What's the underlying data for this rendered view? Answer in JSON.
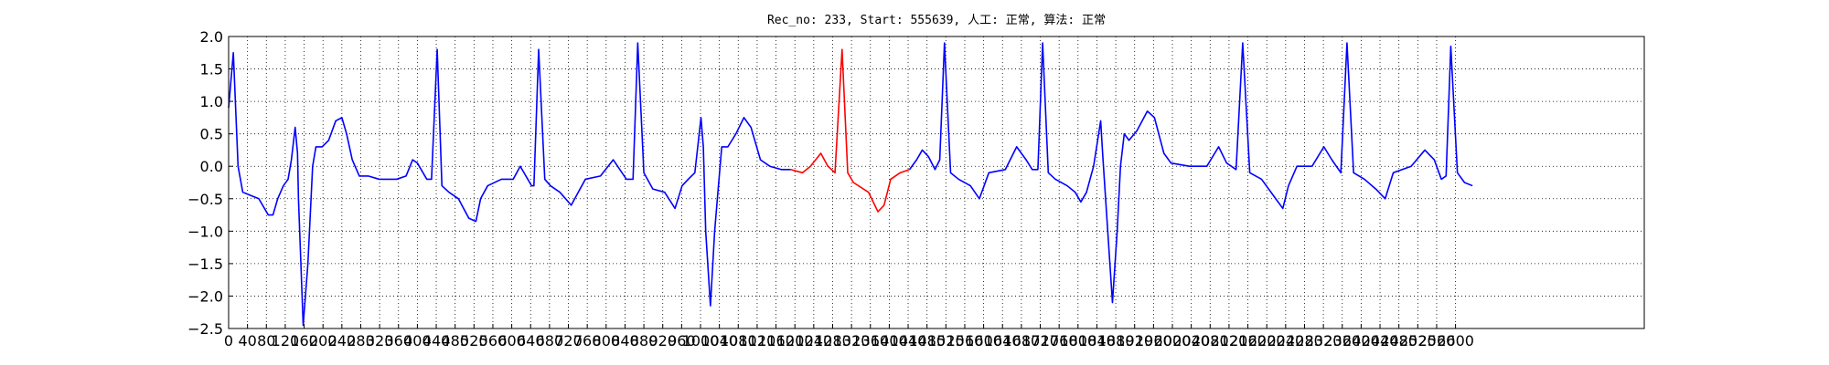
{
  "chart_data": {
    "type": "line",
    "title": "Rec_no: 233, Start: 555639, 人工: 正常, 算法: 正常",
    "x": [
      0,
      10,
      20,
      30,
      47,
      64,
      84,
      94,
      104,
      116,
      126,
      133,
      141,
      146,
      148,
      158,
      168,
      178,
      185,
      198,
      212,
      227,
      240,
      250,
      262,
      277,
      296,
      319,
      356,
      376,
      390,
      400,
      420,
      430,
      442,
      452,
      467,
      487,
      509,
      524,
      534,
      549,
      578,
      603,
      618,
      642,
      647,
      657,
      670,
      682,
      702,
      726,
      741,
      756,
      788,
      815,
      843,
      857,
      867,
      880,
      899,
      924,
      946,
      961,
      974,
      988,
      1001,
      1006,
      1011,
      1021,
      1030,
      1038,
      1045,
      1058,
      1075,
      1092,
      1107,
      1127,
      1147,
      1171,
      1191,
      1216,
      1233,
      1255,
      1270,
      1285,
      1300,
      1312,
      1324,
      1356,
      1376,
      1389,
      1403,
      1423,
      1443,
      1458,
      1470,
      1483,
      1497,
      1507,
      1517,
      1530,
      1547,
      1572,
      1591,
      1611,
      1646,
      1670,
      1690,
      1703,
      1715,
      1725,
      1737,
      1752,
      1777,
      1794,
      1806,
      1818,
      1833,
      1848,
      1853,
      1863,
      1873,
      1883,
      1890,
      1898,
      1908,
      1925,
      1947,
      1962,
      1982,
      1997,
      2036,
      2073,
      2098,
      2115,
      2135,
      2149,
      2164,
      2189,
      2214,
      2234,
      2246,
      2264,
      2296,
      2321,
      2338,
      2357,
      2370,
      2384,
      2407,
      2431,
      2451,
      2468,
      2506,
      2535,
      2555,
      2570,
      2580,
      2590,
      2604,
      2619,
      2636
    ],
    "series": [
      {
        "color": "#0000ff",
        "values": [
          0.9,
          1.75,
          0.0,
          -0.4,
          -0.45,
          -0.5,
          -0.75,
          -0.75,
          -0.5,
          -0.3,
          -0.2,
          0.1,
          0.6,
          0.2,
          -0.5,
          -2.45,
          -1.5,
          0.0,
          0.3,
          0.3,
          0.4,
          0.7,
          0.75,
          0.5,
          0.1,
          -0.15,
          -0.15,
          -0.2,
          -0.2,
          -0.15,
          0.1,
          0.05,
          -0.2,
          -0.2,
          1.8,
          -0.3,
          -0.4,
          -0.5,
          -0.8,
          -0.85,
          -0.5,
          -0.3,
          -0.2,
          -0.2,
          0.0,
          -0.3,
          -0.3,
          1.8,
          -0.2,
          -0.3,
          -0.4,
          -0.6,
          -0.4,
          -0.2,
          -0.15,
          0.1,
          -0.2,
          -0.2,
          1.9,
          -0.1,
          -0.35,
          -0.4,
          -0.65,
          -0.3,
          -0.2,
          -0.1,
          0.75,
          0.3,
          -1.0,
          -2.15,
          -1.0,
          -0.3,
          0.3,
          0.3,
          0.5,
          0.75,
          0.6,
          0.1,
          0.0,
          -0.05,
          -0.05,
          null,
          null,
          null,
          null,
          null,
          null,
          null,
          null,
          null,
          null,
          null,
          null,
          null,
          -0.05,
          0.1,
          0.25,
          0.15,
          -0.05,
          0.1,
          1.9,
          -0.1,
          -0.2,
          -0.3,
          -0.5,
          -0.1,
          -0.05,
          0.3,
          0.1,
          -0.05,
          -0.05,
          1.9,
          -0.1,
          -0.2,
          -0.3,
          -0.4,
          -0.55,
          -0.4,
          0.0,
          0.7,
          0.1,
          -1.0,
          -2.1,
          -1.0,
          0.0,
          0.5,
          0.4,
          0.55,
          0.85,
          0.75,
          0.2,
          0.05,
          0.0,
          0.0,
          0.3,
          0.05,
          -0.05,
          1.9,
          -0.1,
          -0.2,
          -0.45,
          -0.65,
          -0.3,
          0.0,
          0.0,
          0.3,
          0.1,
          -0.1,
          1.9,
          -0.1,
          -0.2,
          -0.35,
          -0.5,
          -0.1,
          0.0,
          0.25,
          0.1,
          -0.2,
          -0.15,
          1.85,
          -0.1,
          -0.25,
          -0.3
        ]
      },
      {
        "color": "#ff0000",
        "values": [
          null,
          null,
          null,
          null,
          null,
          null,
          null,
          null,
          null,
          null,
          null,
          null,
          null,
          null,
          null,
          null,
          null,
          null,
          null,
          null,
          null,
          null,
          null,
          null,
          null,
          null,
          null,
          null,
          null,
          null,
          null,
          null,
          null,
          null,
          null,
          null,
          null,
          null,
          null,
          null,
          null,
          null,
          null,
          null,
          null,
          null,
          null,
          null,
          null,
          null,
          null,
          null,
          null,
          null,
          null,
          null,
          null,
          null,
          null,
          null,
          null,
          null,
          null,
          null,
          null,
          null,
          null,
          null,
          null,
          null,
          null,
          null,
          null,
          null,
          null,
          null,
          null,
          null,
          null,
          null,
          -0.05,
          -0.1,
          0.0,
          0.2,
          0.0,
          -0.1,
          1.8,
          -0.1,
          -0.25,
          -0.4,
          -0.7,
          -0.6,
          -0.2,
          -0.1,
          -0.05,
          null,
          null,
          null,
          null,
          null,
          null,
          null,
          null,
          null,
          null,
          null,
          null,
          null,
          null,
          null,
          null,
          null,
          null,
          null,
          null,
          null,
          null,
          null,
          null,
          null,
          null,
          null,
          null,
          null,
          null,
          null,
          null,
          null,
          null,
          null,
          null,
          null,
          null,
          null,
          null,
          null,
          null,
          null,
          null,
          null,
          null,
          null,
          null,
          null,
          null,
          null,
          null,
          null,
          null,
          null,
          null,
          null,
          null,
          null,
          null,
          null,
          null,
          null,
          null,
          null,
          null,
          null,
          null
        ]
      }
    ],
    "xlim": [
      0,
      3000
    ],
    "xticks": [
      0,
      40,
      80,
      120,
      160,
      200,
      240,
      280,
      320,
      360,
      400,
      440,
      480,
      520,
      560,
      600,
      640,
      680,
      720,
      760,
      800,
      840,
      880,
      920,
      960,
      1000,
      1040,
      1080,
      1120,
      1160,
      1200,
      1240,
      1280,
      1320,
      1360,
      1400,
      1440,
      1480,
      1520,
      1560,
      1600,
      1640,
      1680,
      1720,
      1760,
      1800,
      1840,
      1880,
      1920,
      1960,
      2000,
      2040,
      2080,
      2120,
      2160,
      2200,
      2240,
      2280,
      2320,
      2360,
      2400,
      2440,
      2480,
      2520,
      2560,
      2600
    ],
    "ylim": [
      -2.5,
      2.0
    ],
    "yticks": [
      {
        "value": -2.5,
        "label": "−2.5"
      },
      {
        "value": -2.0,
        "label": "−2.0"
      },
      {
        "value": -1.5,
        "label": "−1.5"
      },
      {
        "value": -1.0,
        "label": "−1.0"
      },
      {
        "value": -0.5,
        "label": "−0.5"
      },
      {
        "value": 0,
        "label": "0.0"
      },
      {
        "value": 0.5,
        "label": "0.5"
      },
      {
        "value": 1.0,
        "label": "1.0"
      },
      {
        "value": 1.5,
        "label": "1.5"
      },
      {
        "value": 2.0,
        "label": "2.0"
      }
    ],
    "grid": true
  }
}
